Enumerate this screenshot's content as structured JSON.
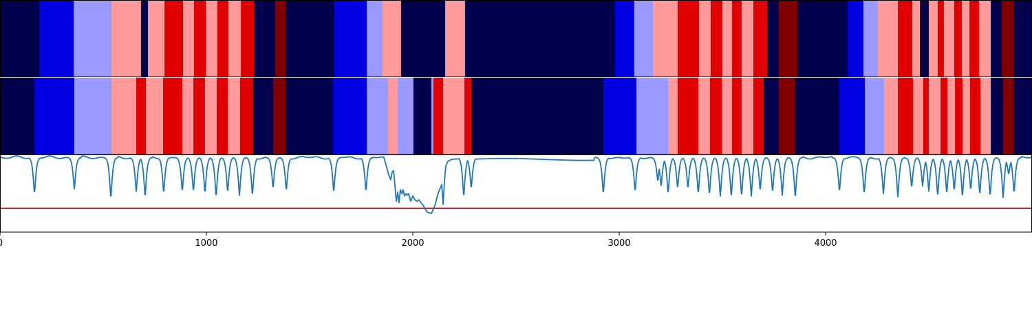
{
  "chart_data": {
    "type": "heatmap",
    "x_range": [
      0,
      5000
    ],
    "xticks": [
      0,
      1000,
      2000,
      3000,
      4000
    ],
    "xtick_labels": [
      "0",
      "1000",
      "2000",
      "3000",
      "4000"
    ],
    "colormap": "seismic",
    "colors": {
      "navy": "#00004c",
      "blue": "#0000e0",
      "light_blue": "#9a9afe",
      "light_red": "#ff9a9a",
      "red": "#e00000",
      "dark_red": "#800000",
      "line": "#1f77b4",
      "threshold": "#e00000"
    },
    "track_top": {
      "segments": [
        {
          "start": 0,
          "end": 190,
          "color": "navy"
        },
        {
          "start": 190,
          "end": 357,
          "color": "blue"
        },
        {
          "start": 357,
          "end": 540,
          "color": "light_blue"
        },
        {
          "start": 540,
          "end": 683,
          "color": "light_red"
        },
        {
          "start": 683,
          "end": 717,
          "color": "navy"
        },
        {
          "start": 717,
          "end": 797,
          "color": "light_red"
        },
        {
          "start": 797,
          "end": 887,
          "color": "red"
        },
        {
          "start": 887,
          "end": 940,
          "color": "light_red"
        },
        {
          "start": 940,
          "end": 997,
          "color": "red"
        },
        {
          "start": 997,
          "end": 1053,
          "color": "light_red"
        },
        {
          "start": 1053,
          "end": 1107,
          "color": "red"
        },
        {
          "start": 1107,
          "end": 1167,
          "color": "light_red"
        },
        {
          "start": 1167,
          "end": 1230,
          "color": "red"
        },
        {
          "start": 1230,
          "end": 1333,
          "color": "navy"
        },
        {
          "start": 1333,
          "end": 1383,
          "color": "dark_red"
        },
        {
          "start": 1383,
          "end": 1620,
          "color": "navy"
        },
        {
          "start": 1620,
          "end": 1777,
          "color": "blue"
        },
        {
          "start": 1777,
          "end": 1853,
          "color": "light_blue"
        },
        {
          "start": 1853,
          "end": 1943,
          "color": "light_red"
        },
        {
          "start": 1943,
          "end": 2157,
          "color": "navy"
        },
        {
          "start": 2157,
          "end": 2253,
          "color": "light_red"
        },
        {
          "start": 2253,
          "end": 2980,
          "color": "navy"
        },
        {
          "start": 2980,
          "end": 3073,
          "color": "blue"
        },
        {
          "start": 3073,
          "end": 3163,
          "color": "light_blue"
        },
        {
          "start": 3163,
          "end": 3283,
          "color": "light_red"
        },
        {
          "start": 3283,
          "end": 3387,
          "color": "red"
        },
        {
          "start": 3387,
          "end": 3443,
          "color": "light_red"
        },
        {
          "start": 3443,
          "end": 3500,
          "color": "red"
        },
        {
          "start": 3500,
          "end": 3547,
          "color": "light_red"
        },
        {
          "start": 3547,
          "end": 3593,
          "color": "red"
        },
        {
          "start": 3593,
          "end": 3650,
          "color": "light_red"
        },
        {
          "start": 3650,
          "end": 3717,
          "color": "red"
        },
        {
          "start": 3717,
          "end": 3773,
          "color": "navy"
        },
        {
          "start": 3773,
          "end": 3863,
          "color": "dark_red"
        },
        {
          "start": 3863,
          "end": 4107,
          "color": "navy"
        },
        {
          "start": 4107,
          "end": 4183,
          "color": "blue"
        },
        {
          "start": 4183,
          "end": 4253,
          "color": "light_blue"
        },
        {
          "start": 4253,
          "end": 4350,
          "color": "light_red"
        },
        {
          "start": 4350,
          "end": 4420,
          "color": "red"
        },
        {
          "start": 4420,
          "end": 4457,
          "color": "light_red"
        },
        {
          "start": 4457,
          "end": 4500,
          "color": "navy"
        },
        {
          "start": 4500,
          "end": 4543,
          "color": "light_red"
        },
        {
          "start": 4543,
          "end": 4573,
          "color": "red"
        },
        {
          "start": 4573,
          "end": 4623,
          "color": "light_red"
        },
        {
          "start": 4623,
          "end": 4660,
          "color": "red"
        },
        {
          "start": 4660,
          "end": 4697,
          "color": "light_red"
        },
        {
          "start": 4697,
          "end": 4743,
          "color": "red"
        },
        {
          "start": 4743,
          "end": 4800,
          "color": "light_red"
        },
        {
          "start": 4800,
          "end": 4853,
          "color": "navy"
        },
        {
          "start": 4853,
          "end": 4913,
          "color": "dark_red"
        },
        {
          "start": 4913,
          "end": 5000,
          "color": "navy"
        }
      ]
    },
    "track_bottom": {
      "segments": [
        {
          "start": 0,
          "end": 167,
          "color": "navy"
        },
        {
          "start": 167,
          "end": 360,
          "color": "blue"
        },
        {
          "start": 360,
          "end": 540,
          "color": "light_blue"
        },
        {
          "start": 540,
          "end": 660,
          "color": "light_red"
        },
        {
          "start": 660,
          "end": 707,
          "color": "red"
        },
        {
          "start": 707,
          "end": 790,
          "color": "light_red"
        },
        {
          "start": 790,
          "end": 883,
          "color": "red"
        },
        {
          "start": 883,
          "end": 937,
          "color": "light_red"
        },
        {
          "start": 937,
          "end": 993,
          "color": "red"
        },
        {
          "start": 993,
          "end": 1050,
          "color": "light_red"
        },
        {
          "start": 1050,
          "end": 1103,
          "color": "red"
        },
        {
          "start": 1103,
          "end": 1163,
          "color": "light_red"
        },
        {
          "start": 1163,
          "end": 1227,
          "color": "red"
        },
        {
          "start": 1227,
          "end": 1323,
          "color": "navy"
        },
        {
          "start": 1323,
          "end": 1383,
          "color": "dark_red"
        },
        {
          "start": 1383,
          "end": 1613,
          "color": "navy"
        },
        {
          "start": 1613,
          "end": 1777,
          "color": "blue"
        },
        {
          "start": 1777,
          "end": 1880,
          "color": "light_blue"
        },
        {
          "start": 1880,
          "end": 1927,
          "color": "light_red"
        },
        {
          "start": 1927,
          "end": 2003,
          "color": "light_blue"
        },
        {
          "start": 2003,
          "end": 2090,
          "color": "navy"
        },
        {
          "start": 2090,
          "end": 2100,
          "color": "light_blue"
        },
        {
          "start": 2100,
          "end": 2147,
          "color": "red"
        },
        {
          "start": 2147,
          "end": 2250,
          "color": "light_red"
        },
        {
          "start": 2250,
          "end": 2283,
          "color": "red"
        },
        {
          "start": 2283,
          "end": 2923,
          "color": "navy"
        },
        {
          "start": 2923,
          "end": 3083,
          "color": "blue"
        },
        {
          "start": 3083,
          "end": 3237,
          "color": "light_blue"
        },
        {
          "start": 3237,
          "end": 3283,
          "color": "light_red"
        },
        {
          "start": 3283,
          "end": 3383,
          "color": "red"
        },
        {
          "start": 3383,
          "end": 3440,
          "color": "light_red"
        },
        {
          "start": 3440,
          "end": 3497,
          "color": "red"
        },
        {
          "start": 3497,
          "end": 3547,
          "color": "light_red"
        },
        {
          "start": 3547,
          "end": 3593,
          "color": "red"
        },
        {
          "start": 3593,
          "end": 3650,
          "color": "light_red"
        },
        {
          "start": 3650,
          "end": 3700,
          "color": "red"
        },
        {
          "start": 3700,
          "end": 3773,
          "color": "navy"
        },
        {
          "start": 3773,
          "end": 3853,
          "color": "dark_red"
        },
        {
          "start": 3853,
          "end": 4067,
          "color": "navy"
        },
        {
          "start": 4067,
          "end": 4190,
          "color": "blue"
        },
        {
          "start": 4190,
          "end": 4283,
          "color": "light_blue"
        },
        {
          "start": 4283,
          "end": 4350,
          "color": "light_red"
        },
        {
          "start": 4350,
          "end": 4423,
          "color": "red"
        },
        {
          "start": 4423,
          "end": 4473,
          "color": "light_red"
        },
        {
          "start": 4473,
          "end": 4500,
          "color": "red"
        },
        {
          "start": 4500,
          "end": 4557,
          "color": "light_red"
        },
        {
          "start": 4557,
          "end": 4590,
          "color": "red"
        },
        {
          "start": 4590,
          "end": 4627,
          "color": "light_red"
        },
        {
          "start": 4627,
          "end": 4663,
          "color": "red"
        },
        {
          "start": 4663,
          "end": 4700,
          "color": "light_red"
        },
        {
          "start": 4700,
          "end": 4750,
          "color": "red"
        },
        {
          "start": 4750,
          "end": 4800,
          "color": "light_red"
        },
        {
          "start": 4800,
          "end": 4860,
          "color": "navy"
        },
        {
          "start": 4860,
          "end": 4913,
          "color": "dark_red"
        },
        {
          "start": 4913,
          "end": 5000,
          "color": "navy"
        }
      ]
    },
    "line_panel": {
      "type": "line",
      "y_range": [
        0,
        1
      ],
      "threshold": 0.31,
      "baseline": 0.97,
      "dips": [
        [
          167,
          0.5
        ],
        [
          360,
          0.56
        ],
        [
          537,
          0.44
        ],
        [
          660,
          0.53
        ],
        [
          703,
          0.46
        ],
        [
          793,
          0.51
        ],
        [
          883,
          0.53
        ],
        [
          937,
          0.53
        ],
        [
          993,
          0.51
        ],
        [
          1047,
          0.46
        ],
        [
          1103,
          0.52
        ],
        [
          1160,
          0.48
        ],
        [
          1223,
          0.48
        ],
        [
          1323,
          0.57
        ],
        [
          1387,
          0.54
        ],
        [
          1617,
          0.52
        ],
        [
          1773,
          0.53
        ],
        [
          2147,
          0.36
        ],
        [
          2247,
          0.46
        ],
        [
          2283,
          0.57
        ],
        [
          2923,
          0.5
        ],
        [
          3077,
          0.53
        ],
        [
          3187,
          0.66
        ],
        [
          3203,
          0.59
        ],
        [
          3237,
          0.5
        ],
        [
          3283,
          0.57
        ],
        [
          3333,
          0.57
        ],
        [
          3383,
          0.5
        ],
        [
          3437,
          0.49
        ],
        [
          3490,
          0.47
        ],
        [
          3543,
          0.46
        ],
        [
          3593,
          0.47
        ],
        [
          3640,
          0.47
        ],
        [
          3683,
          0.54
        ],
        [
          3743,
          0.52
        ],
        [
          3790,
          0.48
        ],
        [
          3853,
          0.45
        ],
        [
          4067,
          0.53
        ],
        [
          4187,
          0.5
        ],
        [
          4280,
          0.5
        ],
        [
          4350,
          0.46
        ],
        [
          4417,
          0.58
        ],
        [
          4470,
          0.6
        ],
        [
          4500,
          0.53
        ],
        [
          4543,
          0.47
        ],
        [
          4587,
          0.5
        ],
        [
          4623,
          0.54
        ],
        [
          4663,
          0.46
        ],
        [
          4703,
          0.55
        ],
        [
          4747,
          0.49
        ],
        [
          4797,
          0.47
        ],
        [
          4860,
          0.45
        ],
        [
          4887,
          0.75
        ],
        [
          4913,
          0.51
        ]
      ],
      "noisy_section": [
        [
          1860,
          0.97
        ],
        [
          1883,
          0.75
        ],
        [
          1893,
          0.68
        ],
        [
          1900,
          0.78
        ],
        [
          1907,
          0.8
        ],
        [
          1913,
          0.62
        ],
        [
          1920,
          0.4
        ],
        [
          1927,
          0.52
        ],
        [
          1933,
          0.38
        ],
        [
          1940,
          0.55
        ],
        [
          1947,
          0.5
        ],
        [
          1953,
          0.55
        ],
        [
          1960,
          0.47
        ],
        [
          1967,
          0.5
        ],
        [
          1973,
          0.48
        ],
        [
          1980,
          0.5
        ],
        [
          1990,
          0.4
        ],
        [
          2000,
          0.47
        ],
        [
          2010,
          0.42
        ],
        [
          2020,
          0.4
        ],
        [
          2030,
          0.42
        ],
        [
          2040,
          0.38
        ],
        [
          2050,
          0.35
        ],
        [
          2060,
          0.3
        ],
        [
          2070,
          0.26
        ],
        [
          2080,
          0.25
        ],
        [
          2090,
          0.24
        ],
        [
          2100,
          0.3
        ],
        [
          2110,
          0.37
        ],
        [
          2117,
          0.45
        ],
        [
          2125,
          0.52
        ],
        [
          2133,
          0.57
        ],
        [
          2140,
          0.62
        ],
        [
          2147,
          0.36
        ],
        [
          2153,
          0.65
        ],
        [
          2160,
          0.86
        ],
        [
          2170,
          0.92
        ],
        [
          2185,
          0.94
        ],
        [
          2200,
          0.95
        ],
        [
          2215,
          0.95
        ]
      ]
    }
  }
}
